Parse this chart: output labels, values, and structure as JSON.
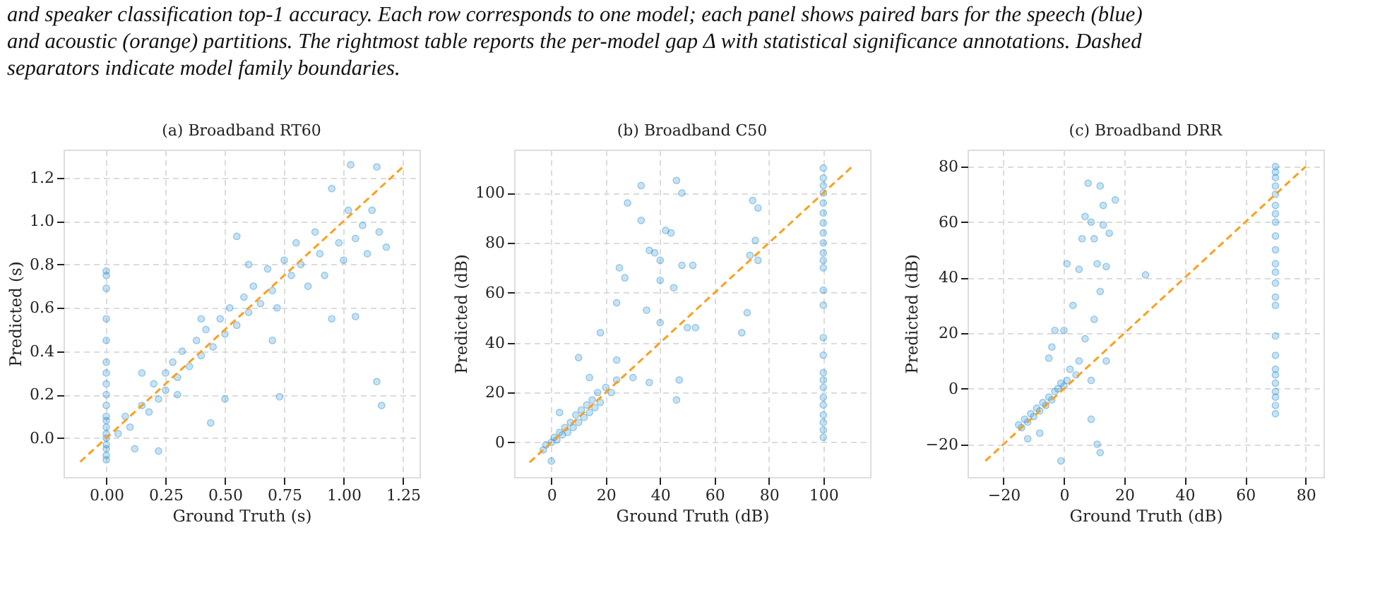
{
  "chart_data": [
    {
      "type": "scatter",
      "title": "(a) Broadband RT60",
      "xlabel": "Ground Truth (s)",
      "ylabel": "Predicted (s)",
      "annotations": [
        "and speaker classification top-1 accuracy. Each row corresponds to one model; each panel shows paired bars for the speech (blue)",
        "and acoustic (orange) partitions. The rightmost table reports the per-model gap Δ with statistical significance annotations. Dashed",
        "separators indicate model family boundaries."
      ],
      "xlim": [
        -0.18,
        1.32
      ],
      "ylim": [
        -0.18,
        1.33
      ],
      "xticks": [
        {
          "value": 0,
          "label": "0.00"
        },
        {
          "value": 0.25,
          "label": "0.25"
        },
        {
          "value": 0.5,
          "label": "0.50"
        },
        {
          "value": 0.75,
          "label": "0.75"
        },
        {
          "value": 1,
          "label": "1.00"
        },
        {
          "value": 1.25,
          "label": "1.25"
        }
      ],
      "yticks": [
        {
          "value": 0,
          "label": "0.0"
        },
        {
          "value": 0.2,
          "label": "0.2"
        },
        {
          "value": 0.4,
          "label": "0.4"
        },
        {
          "value": 0.6,
          "label": "0.6"
        },
        {
          "value": 0.8,
          "label": "0.8"
        },
        {
          "value": 1,
          "label": "1.0"
        },
        {
          "value": 1.2,
          "label": "1.2"
        }
      ],
      "grid": true,
      "series": [
        {
          "marker": "circle",
          "color": "#1f8ad0",
          "x": [
            0,
            0,
            0,
            0,
            0,
            0,
            0,
            0,
            0,
            0,
            0,
            0,
            0,
            0,
            0,
            0,
            0,
            0,
            0,
            0.05,
            0.08,
            0.1,
            0.12,
            0.15,
            0.18,
            0.2,
            0.22,
            0.25,
            0.25,
            0.28,
            0.3,
            0.32,
            0.35,
            0.38,
            0.4,
            0.42,
            0.45,
            0.48,
            0.5,
            0.52,
            0.55,
            0.55,
            0.58,
            0.6,
            0.62,
            0.65,
            0.68,
            0.7,
            0.72,
            0.75,
            0.78,
            0.8,
            0.82,
            0.85,
            0.88,
            0.9,
            0.92,
            0.95,
            0.98,
            1.0,
            1.02,
            1.05,
            1.08,
            1.1,
            1.12,
            1.14,
            1.15,
            1.18,
            1.03,
            1.14,
            1.16,
            0.73,
            0.44,
            0.5,
            0.22,
            0.95,
            1.05,
            0.7,
            0.6,
            0.4,
            0.3,
            0.15
          ],
          "values": [
            -0.1,
            -0.08,
            -0.05,
            -0.03,
            0,
            0.02,
            0.05,
            0.08,
            0.1,
            0.15,
            0.2,
            0.25,
            0.3,
            0.35,
            0.45,
            0.55,
            0.69,
            0.75,
            0.77,
            0.02,
            0.1,
            0.05,
            -0.05,
            0.15,
            0.12,
            0.25,
            0.18,
            0.3,
            0.22,
            0.35,
            0.28,
            0.4,
            0.33,
            0.45,
            0.38,
            0.5,
            0.42,
            0.55,
            0.48,
            0.6,
            0.52,
            0.93,
            0.65,
            0.58,
            0.7,
            0.62,
            0.78,
            0.68,
            0.6,
            0.82,
            0.75,
            0.9,
            0.8,
            0.7,
            0.95,
            0.85,
            0.75,
            1.15,
            0.9,
            0.82,
            1.05,
            0.92,
            0.98,
            0.85,
            1.05,
            1.25,
            0.95,
            0.88,
            1.26,
            0.26,
            0.15,
            0.19,
            0.07,
            0.18,
            -0.06,
            0.55,
            0.56,
            0.45,
            0.8,
            0.55,
            0.2,
            0.3
          ]
        },
        {
          "type": "line",
          "marker": "none",
          "color": "#ff9f1c",
          "line_style": "dashed",
          "x": [
            -0.11,
            1.26
          ],
          "values": [
            -0.11,
            1.26
          ]
        }
      ]
    },
    {
      "type": "scatter",
      "title": "(b) Broadband C50",
      "xlabel": "Ground Truth (dB)",
      "ylabel": "Predicted (dB)",
      "xlim": [
        -13.7,
        117.2
      ],
      "ylim": [
        -13.9,
        117.4
      ],
      "xticks": [
        0,
        20,
        40,
        60,
        80,
        100
      ],
      "yticks": [
        0,
        20,
        40,
        60,
        80,
        100
      ],
      "grid": true,
      "series": [
        {
          "marker": "circle",
          "color": "#1f8ad0",
          "x": [
            100,
            100,
            100,
            100,
            100,
            100,
            100,
            100,
            100,
            100,
            100,
            100,
            100,
            100,
            100,
            100,
            100,
            100,
            100,
            100,
            100,
            100,
            100,
            100,
            100,
            -3,
            -2,
            0,
            0,
            1,
            2,
            3,
            3,
            4,
            5,
            6,
            7,
            8,
            9,
            10,
            11,
            12,
            13,
            14,
            15,
            16,
            17,
            18,
            18,
            20,
            22,
            24,
            24,
            25,
            28,
            33,
            33,
            30,
            35,
            36,
            38,
            40,
            40,
            42,
            44,
            45,
            46,
            46,
            47,
            48,
            48,
            50,
            52,
            53,
            27,
            24,
            40,
            36,
            70,
            72,
            73,
            74,
            75,
            76,
            76,
            10,
            14
          ],
          "values": [
            2,
            5,
            8,
            11,
            15,
            18,
            22,
            25,
            28,
            35,
            42,
            55,
            61,
            70,
            73,
            76,
            80,
            84,
            88,
            92,
            96,
            100,
            103,
            106,
            110,
            -3,
            -1,
            0,
            -7.5,
            2,
            1,
            4,
            12,
            3,
            6,
            4,
            8,
            6,
            11,
            8,
            13,
            10,
            15,
            12,
            17,
            14,
            20,
            16,
            44,
            22,
            20,
            25,
            33,
            70,
            96,
            103,
            89,
            26,
            53,
            77,
            76,
            73,
            65,
            85,
            84,
            62,
            105,
            17,
            25,
            100,
            71,
            46,
            71,
            46,
            66,
            56,
            48,
            24,
            44,
            52,
            75,
            97,
            81,
            94,
            73,
            34,
            26
          ]
        },
        {
          "type": "line",
          "marker": "none",
          "color": "#ff9f1c",
          "line_style": "dashed",
          "x": [
            -8,
            111
          ],
          "values": [
            -8,
            111
          ]
        }
      ]
    },
    {
      "type": "scatter",
      "title": "(c) Broadband DRR",
      "xlabel": "Ground Truth (dB)",
      "ylabel": "Predicted (dB)",
      "xlim": [
        -31.9,
        85.9
      ],
      "ylim": [
        -31.8,
        86.1
      ],
      "xticks": [
        {
          "value": -20,
          "label": "−20"
        },
        0,
        20,
        40,
        60,
        80
      ],
      "yticks": [
        {
          "value": -20,
          "label": "−20"
        },
        0,
        20,
        40,
        60,
        80
      ],
      "grid": true,
      "series": [
        {
          "marker": "circle",
          "color": "#1f8ad0",
          "x": [
            70,
            70,
            70,
            70,
            70,
            70,
            70,
            70,
            70,
            70,
            70,
            70,
            70,
            70,
            70,
            70,
            70,
            70,
            70,
            70,
            70,
            70,
            70,
            70,
            -15,
            -14,
            -13,
            -12,
            -11,
            -10,
            -9,
            -8,
            -7,
            -6,
            -5,
            -4,
            -3,
            -2,
            -1,
            0,
            1,
            -12,
            -8,
            -1,
            -3,
            0,
            1,
            3,
            5,
            6,
            7,
            8,
            9,
            10,
            11,
            12,
            13,
            13,
            15,
            17,
            14,
            12,
            10,
            9,
            9,
            11,
            12,
            14,
            27,
            5,
            7,
            4,
            2,
            -5,
            -4
          ],
          "values": [
            -9,
            -6,
            -3,
            -1,
            2,
            5,
            7,
            12,
            19,
            30,
            33,
            38,
            42,
            45,
            50,
            55,
            60,
            63,
            66,
            70,
            73,
            76,
            78,
            80,
            -13,
            -14,
            -11,
            -12,
            -9,
            -10,
            -7,
            -8,
            -5,
            -6,
            -3,
            -4,
            -1,
            0,
            2,
            1,
            3,
            -18,
            -16,
            -26,
            21,
            21,
            45,
            30,
            43,
            54,
            62,
            74,
            60,
            54,
            45,
            73,
            59,
            66,
            56,
            68,
            44,
            35,
            25,
            3,
            -11,
            -20,
            -23,
            10,
            41,
            10,
            18,
            5,
            7,
            11,
            15
          ]
        },
        {
          "type": "line",
          "marker": "none",
          "color": "#ff9f1c",
          "line_style": "dashed",
          "x": [
            -26,
            80
          ],
          "values": [
            -26,
            80
          ]
        }
      ]
    }
  ]
}
